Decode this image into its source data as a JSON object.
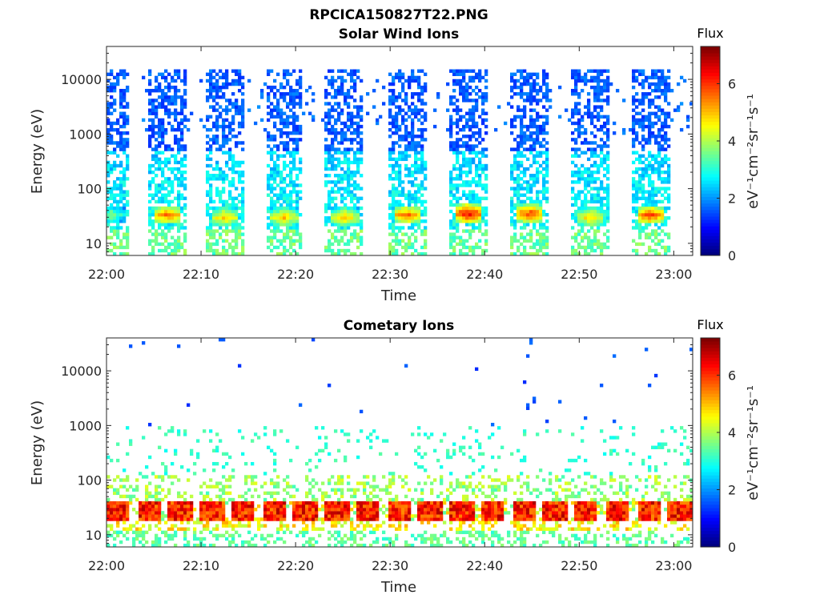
{
  "figure_title": "RPCICA150827T22.PNG",
  "chart_data": [
    {
      "type": "heatmap",
      "title": "Solar Wind Ions",
      "xlabel": "Time",
      "ylabel": "Energy (eV)",
      "xlim": [
        "22:00",
        "23:02"
      ],
      "ylim": [
        6,
        40000
      ],
      "yscale": "log",
      "xticks": [
        "22:00",
        "22:10",
        "22:20",
        "22:30",
        "22:40",
        "22:50",
        "23:00"
      ],
      "yticks": [
        10,
        100,
        1000,
        10000
      ],
      "ytick_labels": [
        "10",
        "100",
        "1000",
        "10000"
      ],
      "colorbar": {
        "label": "Flux",
        "unit": "eV⁻¹cm⁻²sr⁻¹s⁻¹",
        "range": [
          0,
          7.3
        ],
        "ticks": [
          0,
          2,
          4,
          6
        ],
        "colormap": "jet"
      },
      "bursts": [
        {
          "time": "22:00.5",
          "peak_energy": 33,
          "peak_flux": 3.5
        },
        {
          "time": "22:06.5",
          "peak_energy": 33,
          "peak_flux": 5.5
        },
        {
          "time": "22:12.5",
          "peak_energy": 30,
          "peak_flux": 4.8
        },
        {
          "time": "22:18.8",
          "peak_energy": 30,
          "peak_flux": 4.8
        },
        {
          "time": "22:25.2",
          "peak_energy": 30,
          "peak_flux": 4.8
        },
        {
          "time": "22:31.8",
          "peak_energy": 33,
          "peak_flux": 5.5
        },
        {
          "time": "22:38.3",
          "peak_energy": 35,
          "peak_flux": 6.3
        },
        {
          "time": "22:44.8",
          "peak_energy": 35,
          "peak_flux": 5.8
        },
        {
          "time": "22:51.2",
          "peak_energy": 30,
          "peak_flux": 4.8
        },
        {
          "time": "22:57.5",
          "peak_energy": 33,
          "peak_flux": 5.8
        }
      ],
      "grid": false
    },
    {
      "type": "heatmap",
      "title": "Cometary Ions",
      "xlabel": "Time",
      "ylabel": "Energy (eV)",
      "xlim": [
        "22:00",
        "23:02"
      ],
      "ylim": [
        6,
        40000
      ],
      "yscale": "log",
      "xticks": [
        "22:00",
        "22:10",
        "22:20",
        "22:30",
        "22:40",
        "22:50",
        "23:00"
      ],
      "yticks": [
        10,
        100,
        1000,
        10000
      ],
      "ytick_labels": [
        "10",
        "100",
        "1000",
        "10000"
      ],
      "colorbar": {
        "label": "Flux",
        "unit": "eV⁻¹cm⁻²sr⁻¹s⁻¹",
        "range": [
          0,
          7.3
        ],
        "ticks": [
          0,
          2,
          4,
          6
        ],
        "colormap": "jet"
      },
      "band": {
        "energy_range": [
          18,
          40
        ],
        "peak_flux": 7.0,
        "continuous": true
      },
      "grid": false
    }
  ]
}
